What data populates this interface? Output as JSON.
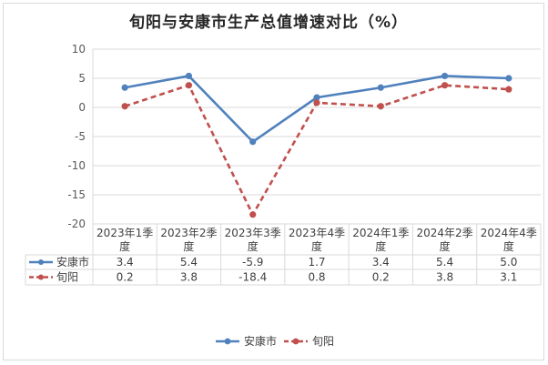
{
  "chart_data": {
    "type": "line",
    "title": "旬阳与安康市生产总值增速对比（%）",
    "categories": [
      "2023年1季度",
      "2023年2季度",
      "2023年3季度",
      "2023年4季度",
      "2024年1季度",
      "2024年2季度",
      "2024年4季度"
    ],
    "ylim": [
      -20,
      10
    ],
    "yticks": [
      10,
      5,
      0,
      -5,
      -10,
      -15,
      -20
    ],
    "grid": true,
    "legend_position": "bottom",
    "series": [
      {
        "name": "安康市",
        "values": [
          3.4,
          5.4,
          -5.9,
          1.7,
          3.4,
          5.4,
          5.0
        ],
        "labels": [
          "3.4",
          "5.4",
          "-5.9",
          "1.7",
          "3.4",
          "5.4",
          "5.0"
        ],
        "color": "#4f81bd",
        "style": "solid"
      },
      {
        "name": "旬阳",
        "values": [
          0.2,
          3.8,
          -18.4,
          0.8,
          0.2,
          3.8,
          3.1
        ],
        "labels": [
          "0.2",
          "3.8",
          "-18.4",
          "0.8",
          "0.2",
          "3.8",
          "3.1"
        ],
        "color": "#c0504d",
        "style": "dashed"
      }
    ]
  }
}
